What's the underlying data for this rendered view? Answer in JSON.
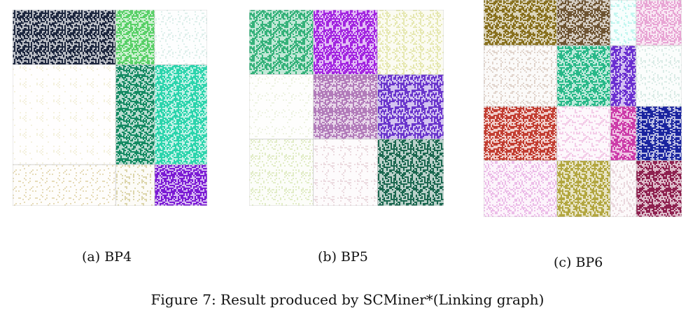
{
  "panels": [
    {
      "caption": "(a) BP4",
      "col_widths": [
        0.53,
        0.2,
        0.27
      ],
      "row_heights": [
        0.28,
        0.51,
        0.21
      ],
      "blocks": [
        [
          "#1e2840",
          "#58d068",
          "#dff0ec"
        ],
        [
          "#f4f2de",
          "#148a62",
          "#2cd4ac"
        ],
        [
          "#e6dbb8",
          "#ddd6ac",
          "#7c1ad4"
        ]
      ],
      "density": [
        [
          0.55,
          0.55,
          0.12
        ],
        [
          0.08,
          0.55,
          0.55
        ],
        [
          0.1,
          0.18,
          0.55
        ]
      ]
    },
    {
      "caption": "(b) BP5",
      "col_widths": [
        0.33,
        0.33,
        0.34
      ],
      "row_heights": [
        0.33,
        0.33,
        0.34
      ],
      "blocks": [
        [
          "#35b27a",
          "#a324e0",
          "#e6e8b2"
        ],
        [
          "#eef4e4",
          "#b27cba",
          "#6a36cc"
        ],
        [
          "#e2eec8",
          "#ecdce0",
          "#1a6850"
        ]
      ],
      "density": [
        [
          0.55,
          0.55,
          0.3
        ],
        [
          0.1,
          0.55,
          0.55
        ],
        [
          0.18,
          0.18,
          0.55
        ]
      ]
    },
    {
      "caption": "(c) BP6",
      "col_widths": [
        0.37,
        0.27,
        0.13,
        0.23
      ],
      "row_heights": [
        0.21,
        0.28,
        0.25,
        0.26
      ],
      "blocks": [
        [
          "#88701e",
          "#6e5432",
          "#c4f6f0",
          "#e8a4d4"
        ],
        [
          "#e2d4cc",
          "#28b888",
          "#6a30d0",
          "#dcece8"
        ],
        [
          "#c23c30",
          "#f4cce8",
          "#cc3ca8",
          "#1a24a0"
        ],
        [
          "#ecbce8",
          "#b2a640",
          "#ead8de",
          "#8e2050"
        ]
      ],
      "density": [
        [
          0.55,
          0.55,
          0.25,
          0.45
        ],
        [
          0.22,
          0.55,
          0.55,
          0.2
        ],
        [
          0.45,
          0.25,
          0.55,
          0.55
        ],
        [
          0.3,
          0.55,
          0.25,
          0.55
        ]
      ]
    }
  ],
  "figure_caption": "Figure 7: Result produced by SCMiner*(Linking graph)"
}
